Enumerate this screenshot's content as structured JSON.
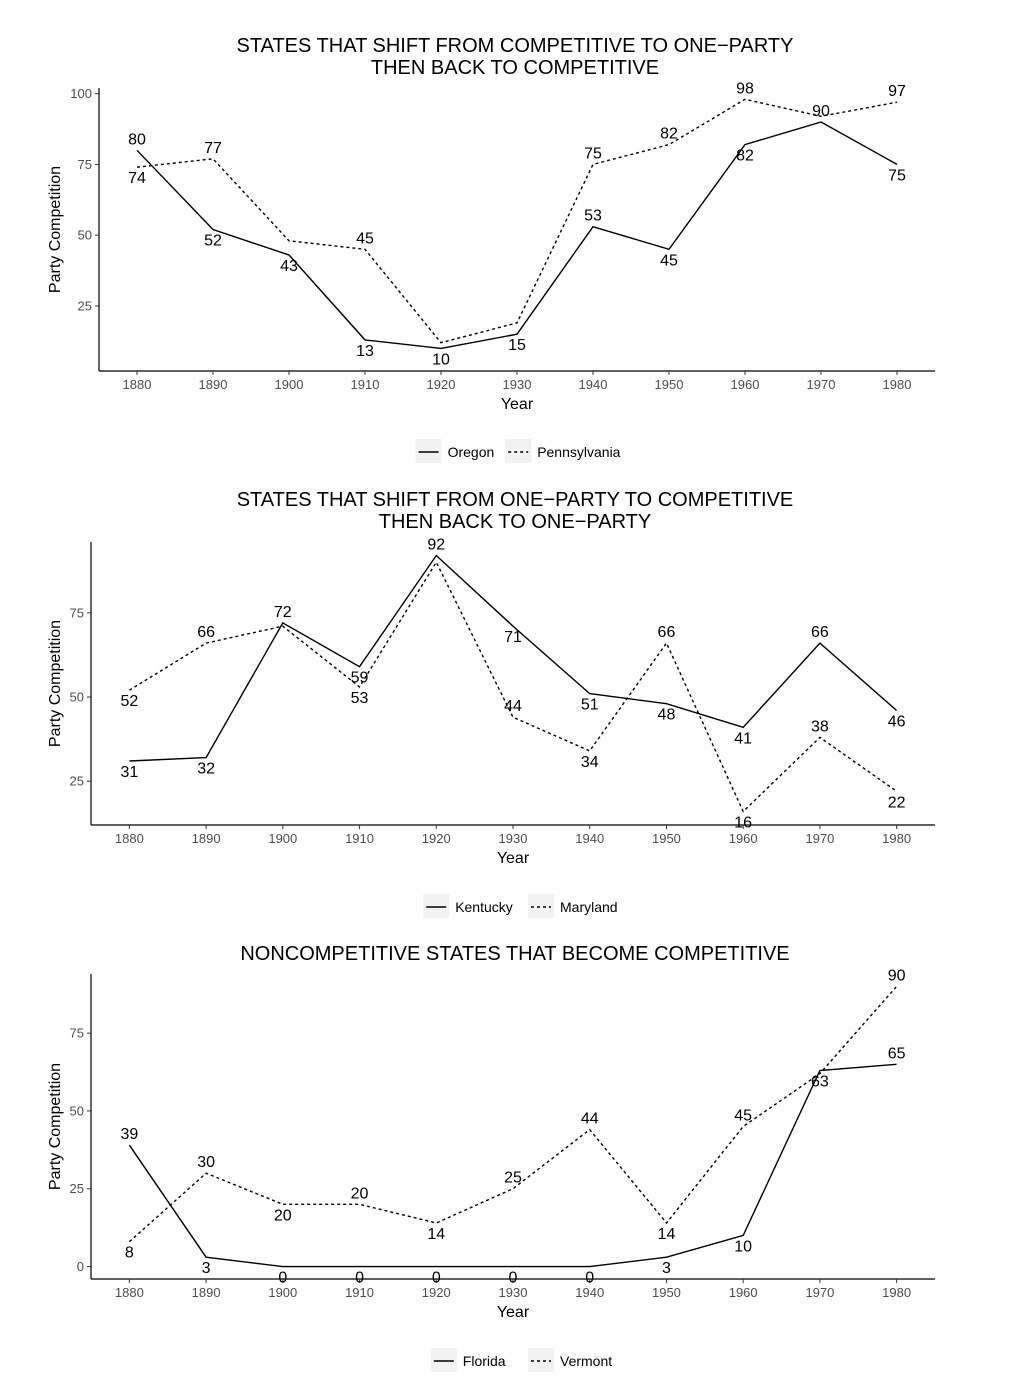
{
  "chart_data": [
    {
      "type": "line",
      "title": [
        "STATES THAT SHIFT FROM COMPETITIVE TO ONE−PARTY",
        "THEN BACK TO COMPETITIVE"
      ],
      "xlabel": "Year",
      "ylabel": "Party Competition",
      "x": [
        1880,
        1890,
        1900,
        1910,
        1920,
        1930,
        1940,
        1950,
        1960,
        1970,
        1980
      ],
      "xlim": [
        1875,
        1985
      ],
      "ylim": [
        2,
        102
      ],
      "yticks": [
        25,
        50,
        75,
        100
      ],
      "grid": false,
      "legend_position": "bottom",
      "series": [
        {
          "name": "Oregon",
          "style": "solid",
          "values": [
            80,
            52,
            43,
            13,
            10,
            15,
            53,
            45,
            82,
            90,
            75
          ],
          "labels": [
            "80",
            "52",
            "43",
            "13",
            "10",
            "15",
            "53",
            "45",
            "82",
            "90",
            "75"
          ]
        },
        {
          "name": "Pennsylvania",
          "style": "dotted",
          "values": [
            74,
            77,
            48,
            45,
            12,
            19,
            75,
            82,
            98,
            92,
            97
          ],
          "labels": [
            "74",
            "77",
            "",
            "45",
            "",
            "",
            "75",
            "82",
            "98",
            "",
            "97"
          ]
        }
      ]
    },
    {
      "type": "line",
      "title": [
        "STATES THAT SHIFT FROM ONE−PARTY TO COMPETITIVE",
        "THEN BACK TO ONE−PARTY"
      ],
      "xlabel": "Year",
      "ylabel": "Party Competition",
      "x": [
        1880,
        1890,
        1900,
        1910,
        1920,
        1930,
        1940,
        1950,
        1960,
        1970,
        1980
      ],
      "xlim": [
        1875,
        1985
      ],
      "ylim": [
        12,
        96
      ],
      "yticks": [
        25,
        50,
        75
      ],
      "grid": false,
      "legend_position": "bottom",
      "series": [
        {
          "name": "Kentucky",
          "style": "solid",
          "values": [
            31,
            32,
            72,
            59,
            92,
            71,
            51,
            48,
            41,
            66,
            46
          ],
          "labels": [
            "31",
            "32",
            "72",
            "59",
            "92",
            "71",
            "51",
            "48",
            "41",
            "66",
            "46"
          ]
        },
        {
          "name": "Maryland",
          "style": "dotted",
          "values": [
            52,
            66,
            71,
            53,
            90,
            44,
            34,
            66,
            16,
            38,
            22
          ],
          "labels": [
            "52",
            "66",
            "",
            "53",
            "",
            "44",
            "34",
            "66",
            "16",
            "38",
            "22"
          ]
        }
      ]
    },
    {
      "type": "line",
      "title": [
        "NONCOMPETITIVE STATES THAT BECOME COMPETITIVE"
      ],
      "xlabel": "Year",
      "ylabel": "Party Competition",
      "x": [
        1880,
        1890,
        1900,
        1910,
        1920,
        1930,
        1940,
        1950,
        1960,
        1970,
        1980
      ],
      "xlim": [
        1875,
        1985
      ],
      "ylim": [
        -4,
        94
      ],
      "yticks": [
        0,
        25,
        50,
        75
      ],
      "grid": false,
      "legend_position": "bottom",
      "series": [
        {
          "name": "Florida",
          "style": "solid",
          "values": [
            39,
            3,
            0,
            0,
            0,
            0,
            0,
            3,
            10,
            63,
            65
          ],
          "labels": [
            "39",
            "3",
            "0",
            "0",
            "0",
            "0",
            "0",
            "3",
            "10",
            "63",
            "65"
          ]
        },
        {
          "name": "Vermont",
          "style": "dotted",
          "values": [
            8,
            30,
            20,
            20,
            14,
            25,
            44,
            14,
            45,
            62,
            90
          ],
          "labels": [
            "8",
            "30",
            "20",
            "20",
            "14",
            "25",
            "44",
            "14",
            "45",
            "",
            "90"
          ]
        }
      ]
    }
  ]
}
